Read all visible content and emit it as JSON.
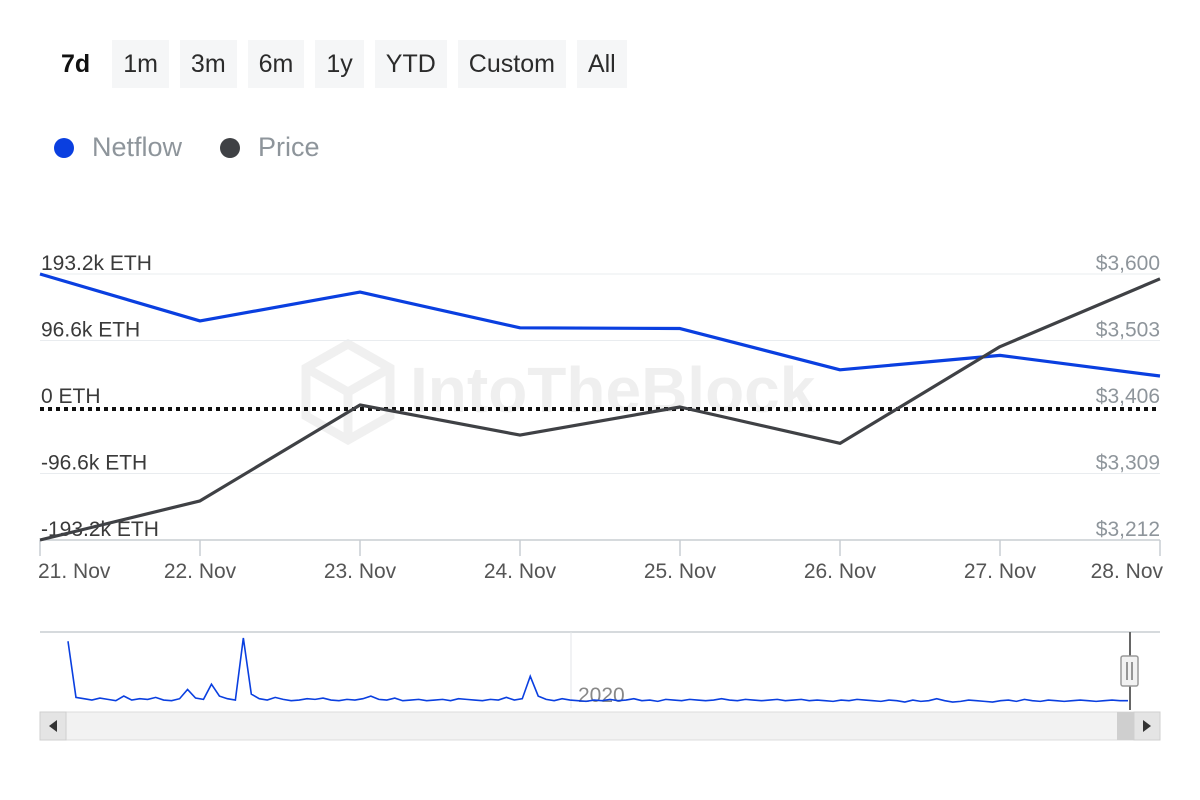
{
  "range_selector": {
    "buttons": [
      "7d",
      "1m",
      "3m",
      "6m",
      "1y",
      "YTD",
      "Custom",
      "All"
    ],
    "selected": "7d"
  },
  "legend": [
    {
      "label": "Netflow",
      "color": "#0a3fe0"
    },
    {
      "label": "Price",
      "color": "#3f4145"
    }
  ],
  "watermark": "IntoTheBlock",
  "chart_data": {
    "type": "line",
    "x": [
      "21. Nov",
      "22. Nov",
      "23. Nov",
      "24. Nov",
      "25. Nov",
      "26. Nov",
      "27. Nov",
      "28. Nov"
    ],
    "series": [
      {
        "name": "Netflow",
        "axis": "left",
        "color": "#0a3fe0",
        "values": [
          193200,
          125000,
          167000,
          115000,
          114000,
          54000,
          75000,
          45000
        ]
      },
      {
        "name": "Price",
        "axis": "right",
        "color": "#3f4145",
        "values": [
          3212,
          3269,
          3409,
          3365,
          3406,
          3353,
          3494,
          3593
        ]
      }
    ],
    "left_axis": {
      "ticks": [
        "193.2k ETH",
        "96.6k ETH",
        "0 ETH",
        "-96.6k ETH",
        "-193.2k ETH"
      ],
      "values": [
        193200,
        96600,
        0,
        -96600,
        -193200
      ],
      "range": [
        -193200,
        193200
      ]
    },
    "right_axis": {
      "ticks": [
        "$3,600",
        "$3,503",
        "$3,406",
        "$3,309",
        "$3,212"
      ],
      "values": [
        3600,
        3503,
        3406,
        3309,
        3212
      ],
      "range": [
        3212,
        3600
      ]
    },
    "zero_line": "dotted",
    "navigator": {
      "label": "2020",
      "values": [
        0.95,
        0.1,
        0.08,
        0.06,
        0.09,
        0.07,
        0.05,
        0.12,
        0.06,
        0.08,
        0.07,
        0.1,
        0.06,
        0.05,
        0.08,
        0.22,
        0.09,
        0.07,
        0.3,
        0.12,
        0.08,
        0.06,
        1.0,
        0.15,
        0.08,
        0.06,
        0.1,
        0.07,
        0.05,
        0.06,
        0.08,
        0.07,
        0.09,
        0.06,
        0.05,
        0.07,
        0.06,
        0.08,
        0.12,
        0.07,
        0.06,
        0.09,
        0.05,
        0.06,
        0.07,
        0.05,
        0.06,
        0.07,
        0.05,
        0.08,
        0.07,
        0.06,
        0.05,
        0.07,
        0.06,
        0.1,
        0.06,
        0.08,
        0.42,
        0.12,
        0.07,
        0.05,
        0.08,
        0.06,
        0.05,
        0.04,
        0.06,
        0.05,
        0.07,
        0.05,
        0.06,
        0.08,
        0.05,
        0.06,
        0.04,
        0.07,
        0.06,
        0.05,
        0.07,
        0.06,
        0.05,
        0.06,
        0.08,
        0.06,
        0.05,
        0.07,
        0.06,
        0.05,
        0.06,
        0.07,
        0.05,
        0.06,
        0.07,
        0.05,
        0.06,
        0.05,
        0.04,
        0.06,
        0.05,
        0.07,
        0.06,
        0.05,
        0.04,
        0.06,
        0.05,
        0.03,
        0.06,
        0.04,
        0.05,
        0.08,
        0.05,
        0.03,
        0.04,
        0.06,
        0.05,
        0.04,
        0.03,
        0.05,
        0.06,
        0.04,
        0.07,
        0.05,
        0.04,
        0.06,
        0.05,
        0.04,
        0.05,
        0.06,
        0.05,
        0.04,
        0.05,
        0.06,
        0.05,
        0.05
      ]
    }
  }
}
